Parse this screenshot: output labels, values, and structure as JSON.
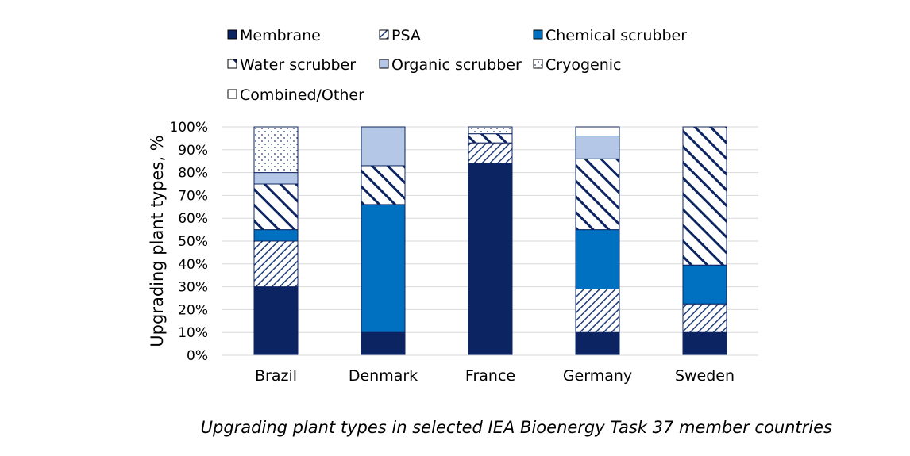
{
  "caption": "Upgrading plant types in selected IEA Bioenergy Task 37 member countries",
  "chart_data": {
    "type": "bar",
    "stacked": true,
    "ylabel": "Upgrading plant types, %",
    "ylim": [
      0,
      100
    ],
    "yticks": [
      "0%",
      "10%",
      "20%",
      "30%",
      "40%",
      "50%",
      "60%",
      "70%",
      "80%",
      "90%",
      "100%"
    ],
    "grid": true,
    "legend_position": "top",
    "categories": [
      "Brazil",
      "Denmark",
      "France",
      "Germany",
      "Sweden"
    ],
    "series": [
      {
        "name": "Membrane",
        "pattern": "solid",
        "color": "#0c2461",
        "values": [
          30,
          10,
          84,
          10,
          10
        ]
      },
      {
        "name": "PSA",
        "pattern": "hatch-fine",
        "color": "#1f3d7a",
        "values": [
          20,
          0,
          9,
          19,
          12.5
        ]
      },
      {
        "name": "Chemical scrubber",
        "pattern": "solid",
        "color": "#0070c0",
        "values": [
          5,
          56,
          0,
          26,
          17
        ]
      },
      {
        "name": "Water scrubber",
        "pattern": "hatch-wide",
        "color": "#0c2461",
        "values": [
          20,
          17,
          4,
          31,
          60.5
        ]
      },
      {
        "name": "Organic scrubber",
        "pattern": "solid",
        "color": "#b4c7e7",
        "values": [
          5,
          17,
          0,
          10,
          0
        ]
      },
      {
        "name": "Cryogenic",
        "pattern": "dots",
        "color": "#1f3d7a",
        "values": [
          20,
          0,
          3,
          0,
          0
        ]
      },
      {
        "name": "Combined/Other",
        "pattern": "solid",
        "color": "#ffffff",
        "values": [
          0,
          0,
          0,
          4,
          0
        ]
      }
    ]
  }
}
